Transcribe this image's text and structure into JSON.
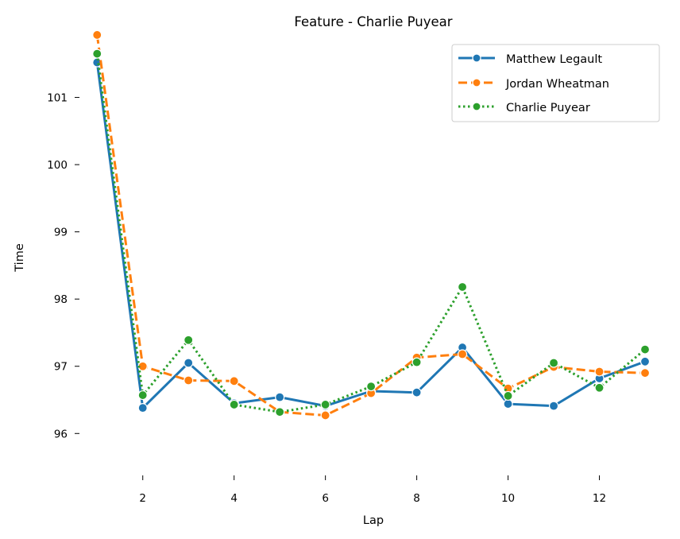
{
  "chart_data": {
    "type": "line",
    "title": "Feature - Charlie Puyear",
    "xlabel": "Lap",
    "ylabel": "Time",
    "xlim": [
      0.7,
      13.4
    ],
    "ylim": [
      95.4,
      102.0
    ],
    "xticks": [
      2,
      4,
      6,
      8,
      10,
      12
    ],
    "yticks": [
      96,
      97,
      98,
      99,
      100,
      101
    ],
    "grid": false,
    "legend_position": "top-right",
    "x": [
      1,
      2,
      3,
      4,
      5,
      6,
      7,
      8,
      9,
      10,
      11,
      12,
      13
    ],
    "series": [
      {
        "name": "Matthew Legault",
        "color": "#1f77b4",
        "dash": "solid",
        "values": [
          101.52,
          96.38,
          97.05,
          96.45,
          96.54,
          96.41,
          96.63,
          96.61,
          97.28,
          96.44,
          96.41,
          96.82,
          97.07
        ]
      },
      {
        "name": "Jordan Wheatman",
        "color": "#ff7f0e",
        "dash": "dashed",
        "values": [
          101.93,
          97.0,
          96.79,
          96.78,
          96.32,
          96.27,
          96.6,
          97.13,
          97.18,
          96.67,
          96.99,
          96.92,
          96.9
        ]
      },
      {
        "name": "Charlie Puyear",
        "color": "#2ca02c",
        "dash": "dotted",
        "values": [
          101.65,
          96.57,
          97.39,
          96.43,
          96.32,
          96.43,
          96.7,
          97.06,
          98.18,
          96.56,
          97.05,
          96.68,
          97.25
        ]
      }
    ]
  }
}
